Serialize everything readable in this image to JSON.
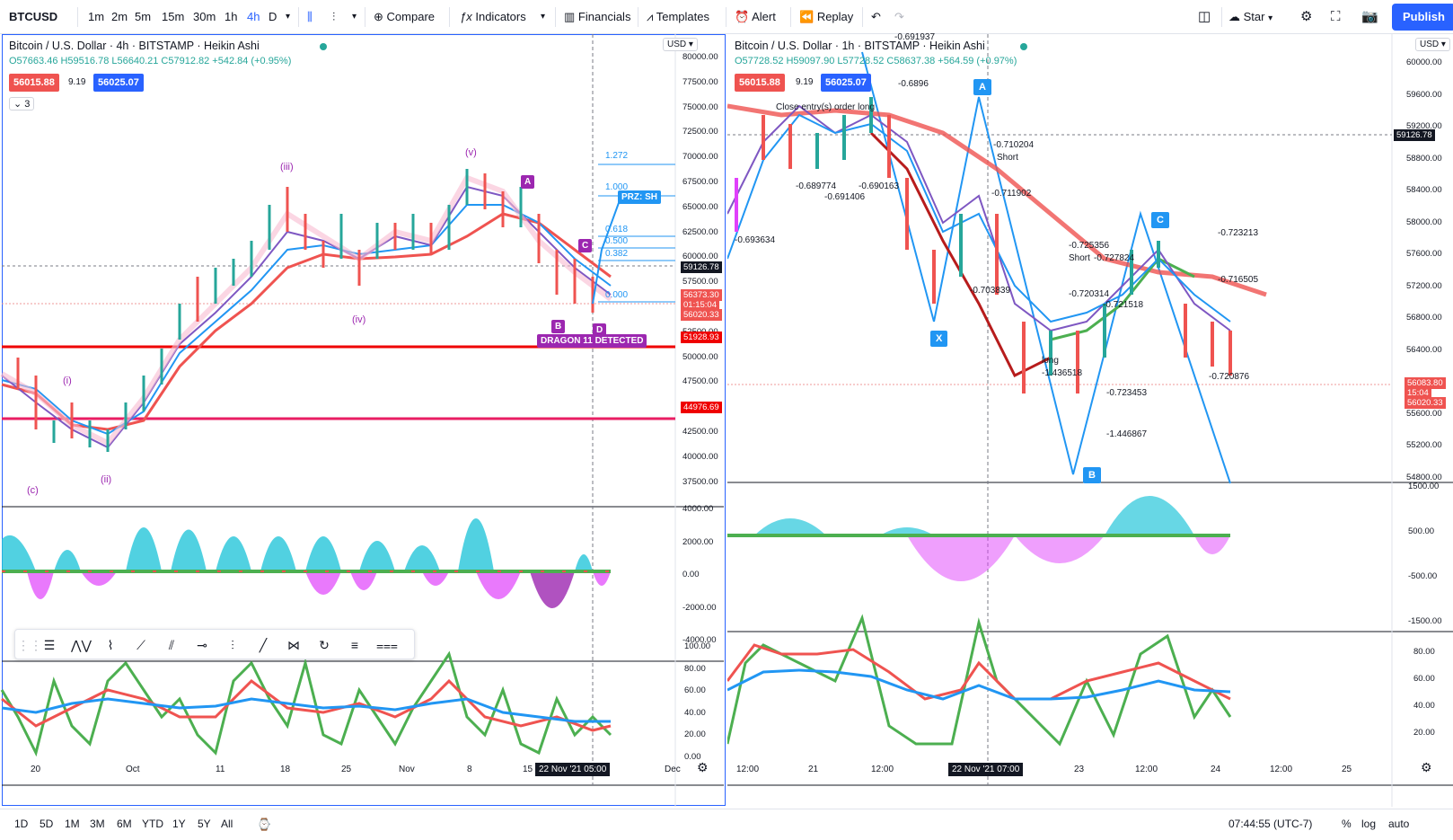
{
  "symbol": "BTCUSD",
  "intervals": [
    "1m",
    "2m",
    "5m",
    "15m",
    "30m",
    "1h",
    "4h",
    "D"
  ],
  "active_interval": "4h",
  "toolbar": {
    "compare": "Compare",
    "indicators": "Indicators",
    "financials": "Financials",
    "templates": "Templates",
    "alert": "Alert",
    "replay": "Replay",
    "layout_name": "Star",
    "publish": "Publish"
  },
  "left_chart": {
    "title": "Bitcoin / U.S. Dollar · 4h · BITSTAMP · Heikin Ashi",
    "ohlc": "O57663.46 H59516.78 L56640.21 C57912.82 +542.84 (+0.95%)",
    "bid": "56015.88",
    "spread": "9.19",
    "ask": "56025.07",
    "collapse": "3",
    "currency": "USD",
    "price_axis": [
      "80000.00",
      "77500.00",
      "75000.00",
      "72500.00",
      "70000.00",
      "67500.00",
      "65000.00",
      "62500.00",
      "60000.00",
      "57500.00",
      "55000.00",
      "52500.00",
      "50000.00",
      "47500.00",
      "45000.00",
      "42500.00",
      "40000.00",
      "37500.00"
    ],
    "price_tags": [
      {
        "text": "59126.78",
        "color": "#131722"
      },
      {
        "text": "56373.30",
        "color": "#ef5350"
      },
      {
        "text": "01:15:04",
        "color": "#ef5350"
      },
      {
        "text": "56020.33",
        "color": "#ef5350"
      },
      {
        "text": "51928.93",
        "color": "#ef0000"
      },
      {
        "text": "44976.69",
        "color": "#ef0000"
      }
    ],
    "osc_axis": [
      "4000.00",
      "2000.00",
      "0.00",
      "-2000.00",
      "-4000.00"
    ],
    "rsi_axis": [
      "100.00",
      "80.00",
      "60.00",
      "40.00",
      "20.00",
      "0.00"
    ],
    "time_axis": [
      "20",
      "Oct",
      "11",
      "18",
      "25",
      "Nov",
      "8",
      "15",
      "Dec"
    ],
    "crosshair_time": "22 Nov '21   05:00",
    "fib_levels": [
      "1.272",
      "1.000",
      "0.618",
      "0.500",
      "0.382",
      "0.000"
    ],
    "prz_label": "PRZ: SH",
    "pattern_label": "DRAGON 11 DETECTED",
    "wave_labels": [
      "iii",
      "v",
      "iv",
      "i",
      "ii",
      "c"
    ],
    "xabcd": [
      "A",
      "B",
      "C",
      "D"
    ]
  },
  "right_chart": {
    "title": "Bitcoin / U.S. Dollar · 1h · BITSTAMP · Heikin Ashi",
    "ohlc": "O57728.52 H59097.90 L57728.52 C58637.38 +564.59 (+0.97%)",
    "bid": "56015.88",
    "spread": "9.19",
    "ask": "56025.07",
    "currency": "USD",
    "price_axis": [
      "60000.00",
      "59600.00",
      "59200.00",
      "58800.00",
      "58400.00",
      "58000.00",
      "57600.00",
      "57200.00",
      "56800.00",
      "56400.00",
      "56000.00",
      "55600.00",
      "55200.00",
      "54800.00"
    ],
    "crosshair_price": "59126.78",
    "price_tags": [
      {
        "text": "56083.80",
        "color": "#ef5350"
      },
      {
        "text": "15:04",
        "color": "#ef5350"
      },
      {
        "text": "56020.33",
        "color": "#ef5350"
      }
    ],
    "osc_axis": [
      "1500.00",
      "500.00",
      "-500.00",
      "-1500.00"
    ],
    "rsi_axis": [
      "80.00",
      "60.00",
      "40.00",
      "20.00"
    ],
    "time_axis": [
      "12:00",
      "21",
      "12:00",
      "23",
      "12:00",
      "24",
      "12:00",
      "25"
    ],
    "crosshair_time": "22 Nov '21   07:00",
    "harmonic": [
      "X",
      "A",
      "B",
      "C"
    ],
    "annotations": [
      "-0.691937",
      "-0.6896",
      "Close entry(s) order long",
      "-0.710204",
      "Short",
      "-0.711902",
      "-0.725356",
      "Short",
      "-0.727824",
      "-0.723213",
      "-0.716505",
      "-0.720314",
      "-0.721518",
      "long",
      "-1.436518",
      "-0.723453",
      "-1.446867",
      "-0.720876",
      "-0.703839",
      "-0.693634",
      "-0.689774",
      "-0.690163",
      "-0.691406"
    ]
  },
  "bottom": {
    "ranges": [
      "1D",
      "5D",
      "1M",
      "3M",
      "6M",
      "YTD",
      "1Y",
      "5Y",
      "All"
    ],
    "clock": "07:44:55 (UTC-7)",
    "percent": "%",
    "log": "log",
    "auto": "auto"
  },
  "colors": {
    "accent": "#2962ff",
    "up": "#26a69a",
    "down": "#ef5350",
    "line_red": "#ef0000"
  }
}
